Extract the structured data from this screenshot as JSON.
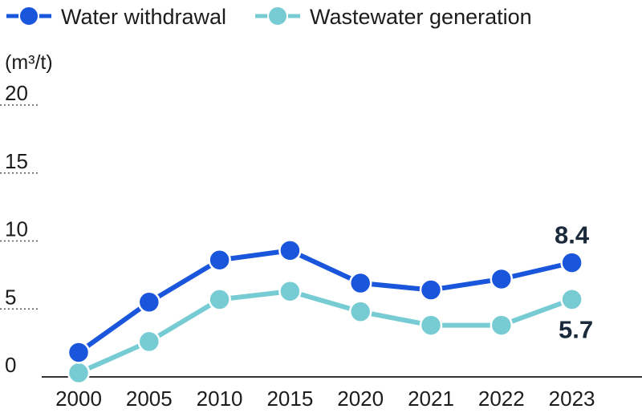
{
  "chart_data": {
    "type": "line",
    "unit": "(m³/t)",
    "categories": [
      "2000",
      "2005",
      "2010",
      "2015",
      "2020",
      "2021",
      "2022",
      "2023"
    ],
    "ylim": [
      0,
      20
    ],
    "yticks": [
      "0",
      "5",
      "10",
      "15",
      "20"
    ],
    "grid": "dotted horizontal",
    "legend": "top-left",
    "series": [
      {
        "name": "Water withdrawal",
        "color": "#1a56db",
        "values": [
          1.8,
          5.5,
          8.6,
          9.3,
          6.9,
          6.4,
          7.2,
          8.4
        ],
        "end_label": "8.4"
      },
      {
        "name": "Wastewater generation",
        "color": "#77ccd4",
        "values": [
          0.3,
          2.6,
          5.7,
          6.3,
          4.8,
          3.8,
          3.8,
          5.7
        ],
        "end_label": "5.7"
      }
    ]
  }
}
